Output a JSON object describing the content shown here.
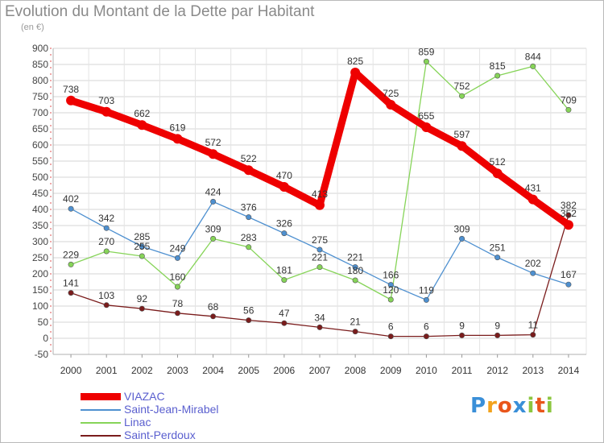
{
  "header": {
    "title": "Evolution du Montant de la Dette par Habitant",
    "unit": "(en €)"
  },
  "logo": {
    "letters": [
      "P",
      "r",
      "o",
      "x",
      "i",
      "t",
      "i"
    ],
    "colors": [
      "#3a8fd8",
      "#f2a21c",
      "#e9561b",
      "#3a8fd8",
      "#8cc63f",
      "#e9561b",
      "#8cc63f"
    ]
  },
  "chart_data": {
    "type": "line",
    "title": "Evolution du Montant de la Dette par Habitant",
    "ylabel": "(en €)",
    "xlabel": "",
    "ylim": [
      -50,
      900
    ],
    "yticks": [
      -50,
      0,
      50,
      100,
      150,
      200,
      250,
      300,
      350,
      400,
      450,
      500,
      550,
      600,
      650,
      700,
      750,
      800,
      850,
      900
    ],
    "categories": [
      "2000",
      "2001",
      "2002",
      "2003",
      "2004",
      "2005",
      "2006",
      "2007",
      "2008",
      "2009",
      "2010",
      "2011",
      "2012",
      "2013",
      "2014"
    ],
    "grid": true,
    "legend": "bottom-left",
    "series": [
      {
        "name": "VIAZAC",
        "color": "#ee0000",
        "values": [
          738,
          703,
          662,
          619,
          572,
          522,
          470,
          413,
          825,
          725,
          655,
          597,
          512,
          431,
          352
        ],
        "labels": [
          "738",
          "703",
          "662",
          "619",
          "572",
          "522",
          "470",
          "413",
          "825",
          "725",
          "655",
          "597",
          "512",
          "431",
          "352"
        ]
      },
      {
        "name": "Saint-Jean-Mirabel",
        "color": "#4e90d0",
        "values": [
          402,
          342,
          285,
          249,
          424,
          376,
          326,
          275,
          221,
          166,
          119,
          309,
          251,
          202,
          167
        ],
        "labels": [
          "402",
          "342",
          "285",
          "249",
          "424",
          "376",
          "326",
          "275",
          "221",
          "166",
          "119",
          "309",
          "251",
          "202",
          "167"
        ]
      },
      {
        "name": "Linac",
        "color": "#86d458",
        "values": [
          229,
          270,
          255,
          160,
          309,
          283,
          181,
          221,
          180,
          120,
          859,
          752,
          815,
          844,
          709
        ],
        "labels": [
          "229",
          "270",
          "255",
          "160",
          "309",
          "283",
          "181",
          "221",
          "180",
          "120",
          "859",
          "752",
          "815",
          "844",
          "709"
        ]
      },
      {
        "name": "Saint-Perdoux",
        "color": "#7a1c1c",
        "values": [
          141,
          103,
          92,
          78,
          68,
          56,
          47,
          34,
          21,
          6,
          6,
          9,
          9,
          11,
          382
        ],
        "labels": [
          "141",
          "103",
          "92",
          "78",
          "68",
          "56",
          "47",
          "34",
          "21",
          "6",
          "6",
          "9",
          "9",
          "11",
          "382"
        ]
      }
    ]
  }
}
